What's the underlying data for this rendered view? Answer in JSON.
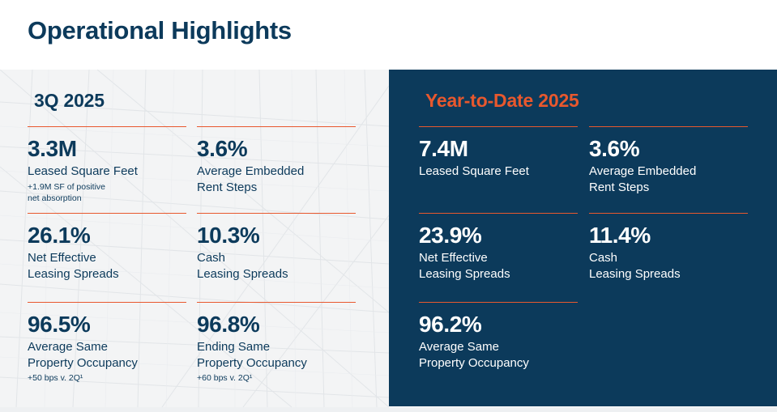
{
  "title": "Operational Highlights",
  "colors": {
    "navy": "#0c3a5b",
    "accent": "#e8582e",
    "panel_bg": "#f3f4f5"
  },
  "quarter": {
    "label": "3Q 2025",
    "metrics": [
      {
        "value": "3.3M",
        "label": "Leased Square Feet",
        "note": "+1.9M SF of positive\nnet absorption"
      },
      {
        "value": "3.6%",
        "label": "Average Embedded\nRent Steps",
        "note": ""
      },
      {
        "value": "26.1%",
        "label": "Net Effective\nLeasing Spreads",
        "note": ""
      },
      {
        "value": "10.3%",
        "label": "Cash\nLeasing Spreads",
        "note": ""
      },
      {
        "value": "96.5%",
        "label": "Average Same\nProperty Occupancy",
        "note": "+50 bps v. 2Q¹"
      },
      {
        "value": "96.8%",
        "label": "Ending Same\nProperty Occupancy",
        "note": "+60 bps v. 2Q¹"
      }
    ]
  },
  "ytd": {
    "label": "Year-to-Date 2025",
    "metrics": [
      {
        "value": "7.4M",
        "label": "Leased Square Feet"
      },
      {
        "value": "3.6%",
        "label": "Average Embedded\nRent Steps"
      },
      {
        "value": "23.9%",
        "label": "Net Effective\nLeasing Spreads"
      },
      {
        "value": "11.4%",
        "label": "Cash\nLeasing Spreads"
      },
      {
        "value": "96.2%",
        "label": "Average Same\nProperty Occupancy"
      }
    ]
  }
}
